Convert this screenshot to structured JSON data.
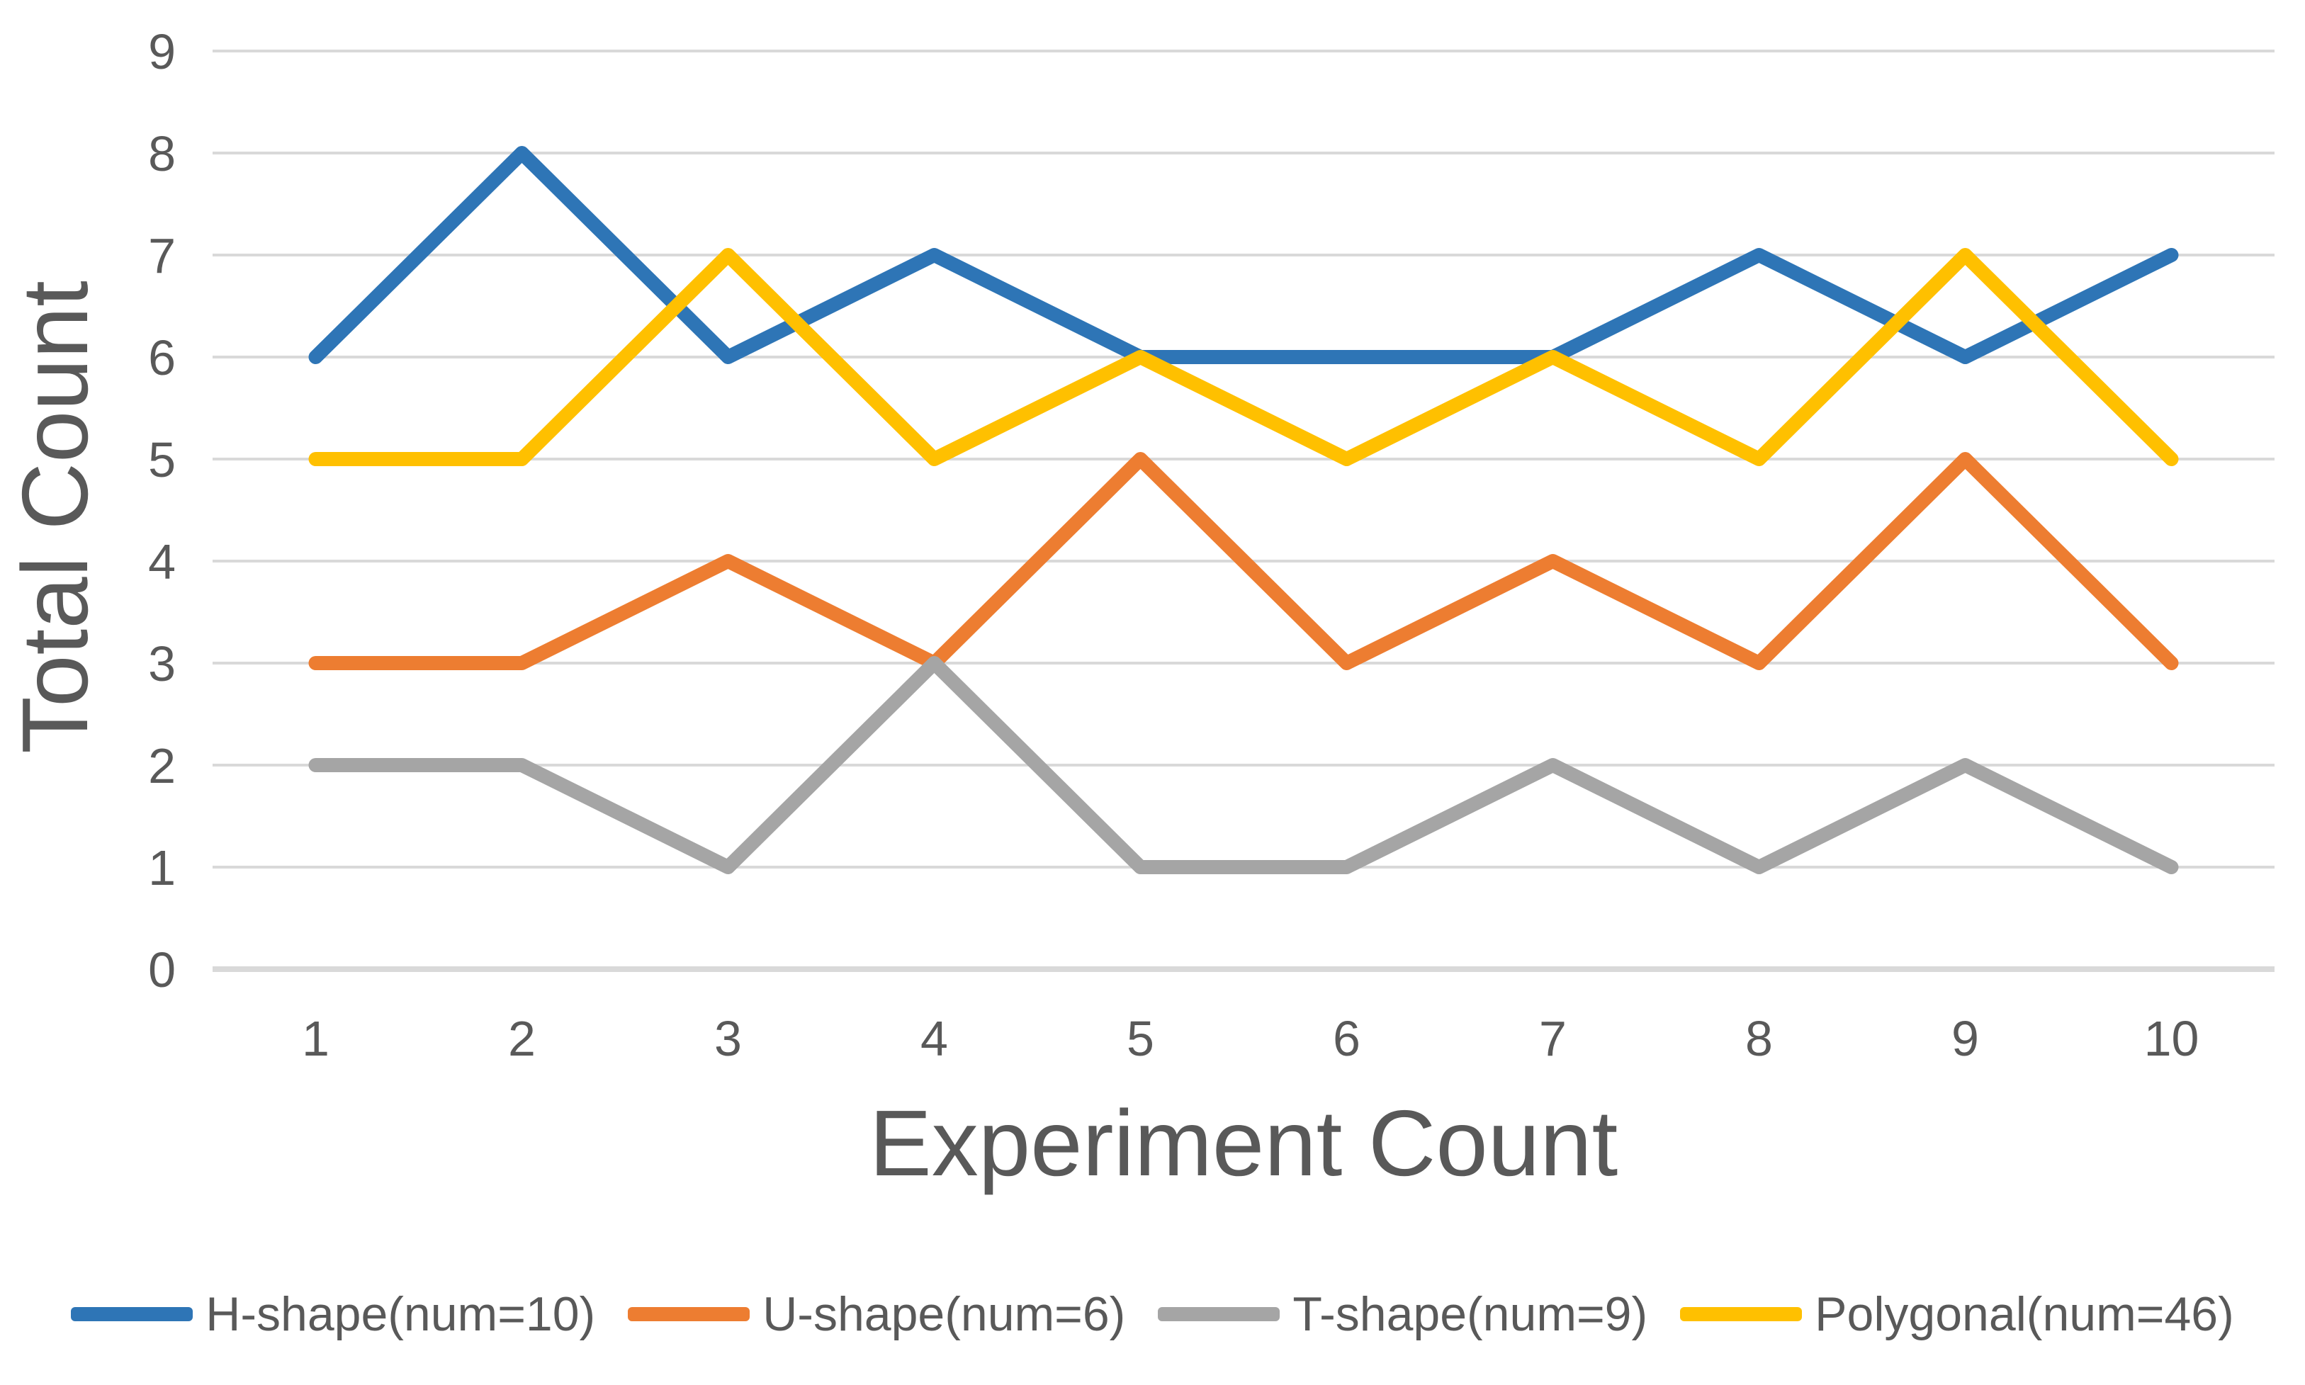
{
  "chart_data": {
    "type": "line",
    "title": "",
    "xlabel": "Experiment Count",
    "ylabel": "Total Count",
    "categories": [
      "1",
      "2",
      "3",
      "4",
      "5",
      "6",
      "7",
      "8",
      "9",
      "10"
    ],
    "yticks": [
      "0",
      "1",
      "2",
      "3",
      "4",
      "5",
      "6",
      "7",
      "8",
      "9"
    ],
    "ylim": [
      0,
      9
    ],
    "grid": true,
    "legend_position": "bottom",
    "series": [
      {
        "name": "H-shape(num=10)",
        "color": "#2E75B6",
        "values": [
          6,
          8,
          6,
          7,
          6,
          6,
          6,
          7,
          6,
          7
        ]
      },
      {
        "name": "U-shape(num=6)",
        "color": "#ED7D31",
        "values": [
          3,
          3,
          4,
          3,
          5,
          3,
          4,
          3,
          5,
          3
        ]
      },
      {
        "name": "T-shape(num=9)",
        "color": "#A5A5A5",
        "values": [
          2,
          2,
          1,
          3,
          1,
          1,
          2,
          1,
          2,
          1
        ]
      },
      {
        "name": "Polygonal(num=46)",
        "color": "#FFC000",
        "values": [
          5,
          5,
          7,
          5,
          6,
          5,
          6,
          5,
          7,
          5
        ]
      }
    ],
    "colors": {
      "grid": "#D9D9D9",
      "axis_line": "#D9D9D9",
      "text": "#595959",
      "background": "#FFFFFF"
    }
  }
}
